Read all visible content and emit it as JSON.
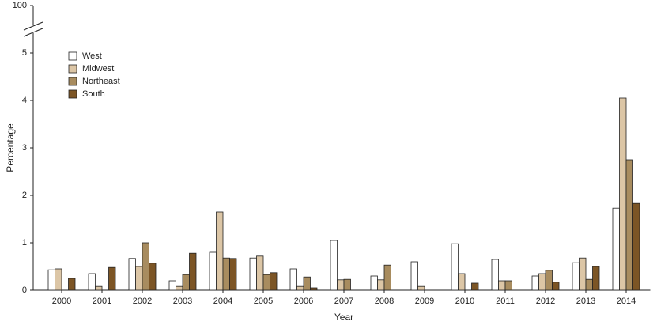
{
  "chart_data": {
    "type": "bar",
    "x_label": "Year",
    "y_label": "Percentage",
    "categories": [
      "2000",
      "2001",
      "2002",
      "2003",
      "2004",
      "2005",
      "2006",
      "2007",
      "2008",
      "2009",
      "2010",
      "2011",
      "2012",
      "2013",
      "2014"
    ],
    "series": [
      {
        "name": "West",
        "color": "#ffffff",
        "values": [
          0.43,
          0.35,
          0.67,
          0.2,
          0.8,
          0.68,
          0.45,
          1.05,
          0.3,
          0.6,
          0.98,
          0.65,
          0.3,
          0.58,
          1.73
        ]
      },
      {
        "name": "Midwest",
        "color": "#dcc6a6",
        "values": [
          0.45,
          0.08,
          0.5,
          0.08,
          1.65,
          0.72,
          0.08,
          0.22,
          0.22,
          0.08,
          0.35,
          0.2,
          0.35,
          0.68,
          4.05
        ]
      },
      {
        "name": "Northeast",
        "color": "#a88c5f",
        "values": [
          0,
          0,
          1.0,
          0.33,
          0.68,
          0.33,
          0.28,
          0.23,
          0.53,
          0,
          0,
          0.2,
          0.42,
          0.23,
          2.75
        ]
      },
      {
        "name": "South",
        "color": "#7c5525",
        "values": [
          0.25,
          0.48,
          0.57,
          0.78,
          0.67,
          0.37,
          0.05,
          0,
          0,
          0,
          0.15,
          0,
          0.17,
          0.5,
          1.83
        ]
      }
    ],
    "ylim": [
      0,
      100
    ],
    "yticks": [
      0,
      1,
      2,
      3,
      4,
      5,
      100
    ],
    "legend": "upper-left"
  }
}
